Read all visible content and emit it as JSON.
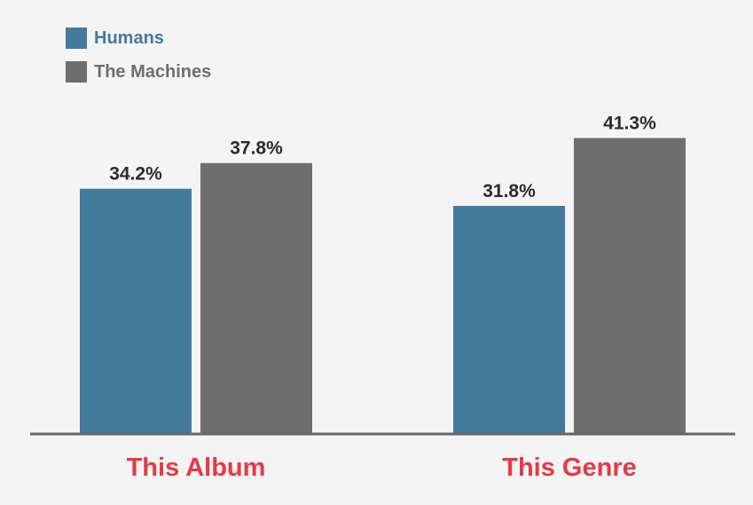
{
  "chart_data": {
    "type": "bar",
    "categories": [
      "This Album",
      "This Genre"
    ],
    "series": [
      {
        "name": "Humans",
        "values": [
          34.2,
          31.8
        ],
        "labels": [
          "34.2%",
          "31.8%"
        ],
        "color": "#447a9c"
      },
      {
        "name": "The Machines",
        "values": [
          37.8,
          41.3
        ],
        "labels": [
          "37.8%",
          "41.3%"
        ],
        "color": "#6e6e6e"
      }
    ],
    "ylim": [
      0,
      50
    ],
    "grid": false,
    "legend_position": "top-left",
    "category_label_color": "#e63946",
    "axis_color": "#666666",
    "background": "#f4f4f4"
  }
}
